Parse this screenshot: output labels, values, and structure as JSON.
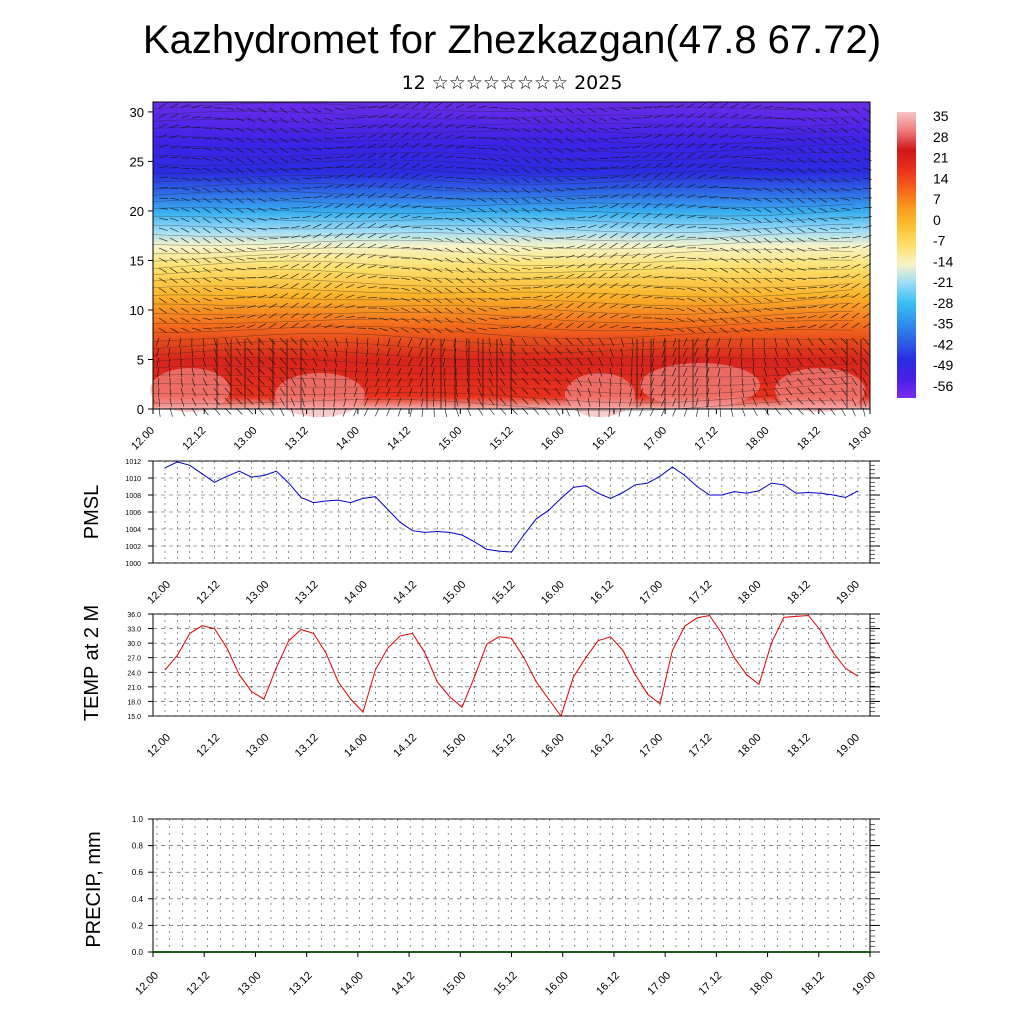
{
  "header": {
    "title": "Kazhydromet for Zhezkazgan(47.8 67.72)",
    "subtitle": "12 ☆☆☆☆☆☆☆☆ 2025"
  },
  "chart_data": [
    {
      "type": "heatmap",
      "name": "temperature-wind-cross-section",
      "xticks": [
        "12.00",
        "12.12",
        "13.00",
        "13.12",
        "14.00",
        "14.12",
        "15.00",
        "15.12",
        "16.00",
        "16.12",
        "17.00",
        "17.12",
        "18.00",
        "18.12",
        "19.00"
      ],
      "yticks": [
        0,
        5,
        10,
        15,
        20,
        25,
        30
      ],
      "ylim": [
        0,
        31
      ],
      "colorbar_labels": [
        "35",
        "28",
        "21",
        "14",
        "7",
        "0",
        "-7",
        "-14",
        "-21",
        "-28",
        "-35",
        "-42",
        "-49",
        "-56"
      ],
      "colorscale": [
        "#7b2cf0",
        "#4a1ee8",
        "#2a2ce0",
        "#2f62e6",
        "#2f93ee",
        "#39c0f4",
        "#98dcf6",
        "#f6f3c8",
        "#fde06b",
        "#fdc131",
        "#fb9a1a",
        "#f5611a",
        "#e8301c",
        "#cf1717",
        "#ee7a7a",
        "#f6c4c4"
      ]
    },
    {
      "type": "line",
      "name": "PMSL",
      "ylabel": "PMSL",
      "xticks": [
        "12.00",
        "12.12",
        "13.00",
        "13.12",
        "14.00",
        "14.12",
        "15.00",
        "15.12",
        "16.00",
        "16.12",
        "17.00",
        "17.12",
        "18.00",
        "18.12",
        "19.00"
      ],
      "yticks": [
        "1012",
        "1010",
        "1008",
        "1006",
        "1004",
        "1002",
        "1000"
      ],
      "ylim": [
        1000,
        1012
      ],
      "color": "#0000cc",
      "values": [
        1011.2,
        1011.9,
        1011.5,
        1010.5,
        1009.5,
        1010.2,
        1010.8,
        1010.1,
        1010.3,
        1010.8,
        1009.4,
        1007.7,
        1007.1,
        1007.3,
        1007.4,
        1007.1,
        1007.6,
        1007.8,
        1006.3,
        1004.8,
        1003.8,
        1003.6,
        1003.7,
        1003.6,
        1003.3,
        1002.5,
        1001.6,
        1001.4,
        1001.3,
        1003.3,
        1005.2,
        1006.2,
        1007.6,
        1008.9,
        1009.1,
        1008.2,
        1007.6,
        1008.3,
        1009.2,
        1009.4,
        1010.2,
        1011.3,
        1010.3,
        1009.0,
        1008.0,
        1008.0,
        1008.4,
        1008.2,
        1008.5,
        1009.4,
        1009.2,
        1008.2,
        1008.3,
        1008.2,
        1008.0,
        1007.7,
        1008.5
      ]
    },
    {
      "type": "line",
      "name": "TEMP at 2 M",
      "ylabel": "TEMP at 2 M",
      "xticks": [
        "12.00",
        "12.12",
        "13.00",
        "13.12",
        "14.00",
        "14.12",
        "15.00",
        "15.12",
        "16.00",
        "16.12",
        "17.00",
        "17.12",
        "18.00",
        "18.12",
        "19.00"
      ],
      "yticks": [
        "36.0",
        "33.0",
        "30.0",
        "27.0",
        "24.0",
        "21.0",
        "18.0",
        "15.0"
      ],
      "ylim": [
        15,
        36
      ],
      "color": "#e00000",
      "values": [
        24.5,
        27.5,
        32.0,
        33.6,
        33.0,
        29.0,
        23.5,
        20.0,
        18.5,
        25.0,
        30.5,
        32.8,
        32.0,
        28.0,
        22.0,
        18.5,
        15.8,
        24.5,
        29.0,
        31.5,
        32.0,
        28.0,
        22.0,
        19.0,
        16.8,
        23.0,
        29.8,
        31.3,
        31.0,
        27.0,
        22.0,
        18.5,
        15.0,
        23.0,
        27.0,
        30.5,
        31.3,
        28.5,
        23.5,
        19.5,
        17.5,
        28.5,
        33.5,
        35.2,
        35.7,
        32.0,
        27.0,
        23.5,
        21.5,
        30.0,
        35.3,
        35.5,
        35.7,
        32.5,
        28.0,
        24.8,
        23.2
      ]
    },
    {
      "type": "bar",
      "name": "PRECIP, mm",
      "ylabel": "PRECIP, mm",
      "xticks": [
        "12.00",
        "12.12",
        "13.00",
        "13.12",
        "14.00",
        "14.12",
        "15.00",
        "15.12",
        "16.00",
        "16.12",
        "17.00",
        "17.12",
        "18.00",
        "18.12",
        "19.00"
      ],
      "yticks": [
        "1.0",
        "0.8",
        "0.6",
        "0.4",
        "0.2",
        "0.0"
      ],
      "ylim": [
        0,
        1
      ],
      "color": "#1a5c1a",
      "values": [
        0,
        0,
        0,
        0,
        0,
        0,
        0,
        0,
        0,
        0,
        0,
        0,
        0,
        0,
        0,
        0,
        0,
        0,
        0,
        0,
        0,
        0,
        0,
        0,
        0,
        0,
        0,
        0,
        0,
        0,
        0,
        0,
        0,
        0,
        0,
        0,
        0,
        0,
        0,
        0,
        0,
        0,
        0,
        0,
        0,
        0,
        0,
        0,
        0,
        0,
        0,
        0,
        0,
        0,
        0,
        0,
        0
      ]
    }
  ]
}
